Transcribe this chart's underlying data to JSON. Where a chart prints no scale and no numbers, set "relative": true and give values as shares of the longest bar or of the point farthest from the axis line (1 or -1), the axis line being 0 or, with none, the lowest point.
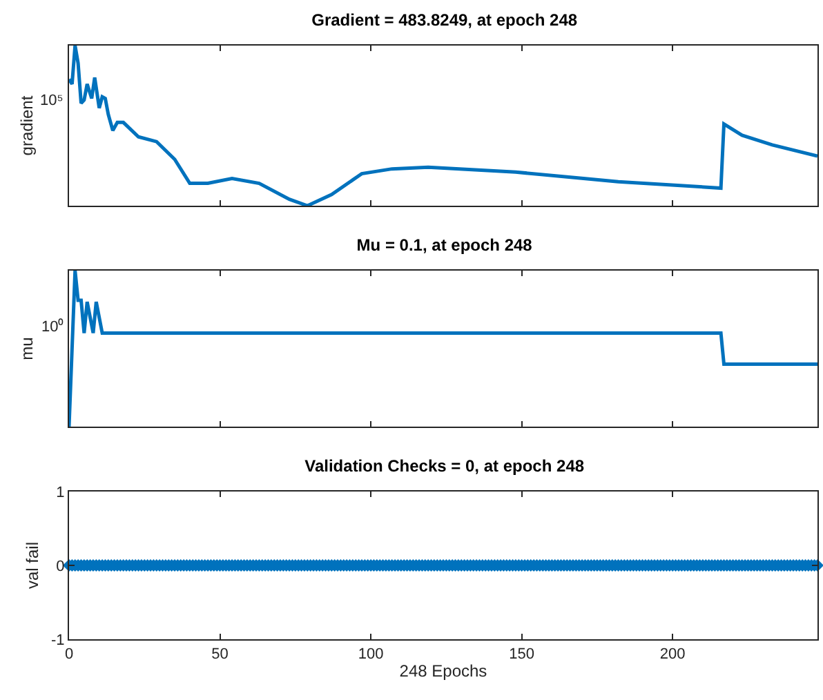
{
  "chart_data": [
    {
      "type": "line",
      "title": "Gradient = 483.8249, at epoch 248",
      "ylabel": "gradient",
      "relative": true,
      "tick_labels": "y",
      "xlim": [
        0,
        248
      ],
      "xticks": [
        0,
        50,
        100,
        150,
        200
      ],
      "annotations": [
        "10⁵"
      ],
      "x": [
        0,
        1,
        2,
        3,
        4,
        5,
        6,
        7.5,
        8.5,
        10,
        11,
        12,
        13,
        14.5,
        16,
        18,
        23,
        29,
        35,
        40,
        46,
        54,
        63,
        73,
        79,
        87,
        97,
        107,
        119,
        148,
        182,
        216,
        217,
        223,
        233,
        248
      ],
      "series": [
        {
          "color": "#0072bd",
          "values": [
            0.79,
            0.76,
            1.0,
            0.89,
            0.64,
            0.66,
            0.76,
            0.67,
            0.8,
            0.61,
            0.68,
            0.67,
            0.57,
            0.47,
            0.52,
            0.52,
            0.43,
            0.4,
            0.29,
            0.14,
            0.14,
            0.17,
            0.14,
            0.04,
            0.0,
            0.07,
            0.2,
            0.23,
            0.24,
            0.21,
            0.15,
            0.11,
            0.51,
            0.44,
            0.38,
            0.31
          ]
        }
      ]
    },
    {
      "type": "line",
      "title": "Mu = 0.1, at epoch 248",
      "ylabel": "mu",
      "relative": true,
      "tick_labels": "y",
      "xlim": [
        0,
        248
      ],
      "xticks": [
        0,
        50,
        100,
        150,
        200
      ],
      "annotations": [
        "10⁰"
      ],
      "x": [
        0,
        2,
        3,
        4,
        5,
        6,
        8,
        9,
        11,
        216,
        217,
        248
      ],
      "series": [
        {
          "color": "#0072bd",
          "values": [
            0.0,
            1.0,
            0.81,
            0.81,
            0.6,
            0.8,
            0.6,
            0.8,
            0.6,
            0.6,
            0.4,
            0.4
          ]
        }
      ]
    },
    {
      "type": "scatter",
      "title": "Validation Checks = 0, at epoch 248",
      "xlabel": "248 Epochs",
      "ylabel": "val fail",
      "xlim": [
        0,
        248
      ],
      "xticks": [
        0,
        50,
        100,
        150,
        200
      ],
      "ylim": [
        -1,
        1
      ],
      "yticks": [
        -1,
        0,
        1
      ],
      "marker": "diamond",
      "x": [
        0,
        1,
        2,
        3,
        4,
        5,
        6,
        7,
        8,
        9,
        10,
        11,
        12,
        13,
        14,
        15,
        16,
        17,
        18,
        19,
        20,
        21,
        22,
        23,
        24,
        25,
        26,
        27,
        28,
        29,
        30,
        31,
        32,
        33,
        34,
        35,
        36,
        37,
        38,
        39,
        40,
        41,
        42,
        43,
        44,
        45,
        46,
        47,
        48,
        49,
        50,
        51,
        52,
        53,
        54,
        55,
        56,
        57,
        58,
        59,
        60,
        61,
        62,
        63,
        64,
        65,
        66,
        67,
        68,
        69,
        70,
        71,
        72,
        73,
        74,
        75,
        76,
        77,
        78,
        79,
        80,
        81,
        82,
        83,
        84,
        85,
        86,
        87,
        88,
        89,
        90,
        91,
        92,
        93,
        94,
        95,
        96,
        97,
        98,
        99,
        100,
        101,
        102,
        103,
        104,
        105,
        106,
        107,
        108,
        109,
        110,
        111,
        112,
        113,
        114,
        115,
        116,
        117,
        118,
        119,
        120,
        121,
        122,
        123,
        124,
        125,
        126,
        127,
        128,
        129,
        130,
        131,
        132,
        133,
        134,
        135,
        136,
        137,
        138,
        139,
        140,
        141,
        142,
        143,
        144,
        145,
        146,
        147,
        148,
        149,
        150,
        151,
        152,
        153,
        154,
        155,
        156,
        157,
        158,
        159,
        160,
        161,
        162,
        163,
        164,
        165,
        166,
        167,
        168,
        169,
        170,
        171,
        172,
        173,
        174,
        175,
        176,
        177,
        178,
        179,
        180,
        181,
        182,
        183,
        184,
        185,
        186,
        187,
        188,
        189,
        190,
        191,
        192,
        193,
        194,
        195,
        196,
        197,
        198,
        199,
        200,
        201,
        202,
        203,
        204,
        205,
        206,
        207,
        208,
        209,
        210,
        211,
        212,
        213,
        214,
        215,
        216,
        217,
        218,
        219,
        220,
        221,
        222,
        223,
        224,
        225,
        226,
        227,
        228,
        229,
        230,
        231,
        232,
        233,
        234,
        235,
        236,
        237,
        238,
        239,
        240,
        241,
        242,
        243,
        244,
        245,
        246,
        247,
        248
      ],
      "series": [
        {
          "color": "#0072bd",
          "values": [
            0,
            0,
            0,
            0,
            0,
            0,
            0,
            0,
            0,
            0,
            0,
            0,
            0,
            0,
            0,
            0,
            0,
            0,
            0,
            0,
            0,
            0,
            0,
            0,
            0,
            0,
            0,
            0,
            0,
            0,
            0,
            0,
            0,
            0,
            0,
            0,
            0,
            0,
            0,
            0,
            0,
            0,
            0,
            0,
            0,
            0,
            0,
            0,
            0,
            0,
            0,
            0,
            0,
            0,
            0,
            0,
            0,
            0,
            0,
            0,
            0,
            0,
            0,
            0,
            0,
            0,
            0,
            0,
            0,
            0,
            0,
            0,
            0,
            0,
            0,
            0,
            0,
            0,
            0,
            0,
            0,
            0,
            0,
            0,
            0,
            0,
            0,
            0,
            0,
            0,
            0,
            0,
            0,
            0,
            0,
            0,
            0,
            0,
            0,
            0,
            0,
            0,
            0,
            0,
            0,
            0,
            0,
            0,
            0,
            0,
            0,
            0,
            0,
            0,
            0,
            0,
            0,
            0,
            0,
            0,
            0,
            0,
            0,
            0,
            0,
            0,
            0,
            0,
            0,
            0,
            0,
            0,
            0,
            0,
            0,
            0,
            0,
            0,
            0,
            0,
            0,
            0,
            0,
            0,
            0,
            0,
            0,
            0,
            0,
            0,
            0,
            0,
            0,
            0,
            0,
            0,
            0,
            0,
            0,
            0,
            0,
            0,
            0,
            0,
            0,
            0,
            0,
            0,
            0,
            0,
            0,
            0,
            0,
            0,
            0,
            0,
            0,
            0,
            0,
            0,
            0,
            0,
            0,
            0,
            0,
            0,
            0,
            0,
            0,
            0,
            0,
            0,
            0,
            0,
            0,
            0,
            0,
            0,
            0,
            0,
            0,
            0,
            0,
            0,
            0,
            0,
            0,
            0,
            0,
            0,
            0,
            0,
            0,
            0,
            0,
            0,
            0,
            0,
            0,
            0,
            0,
            0,
            0,
            0,
            0,
            0,
            0,
            0,
            0,
            0,
            0,
            0,
            0,
            0,
            0,
            0,
            0,
            0,
            0,
            0,
            0,
            0,
            0,
            0,
            0,
            0,
            0,
            0,
            0
          ]
        }
      ]
    }
  ]
}
